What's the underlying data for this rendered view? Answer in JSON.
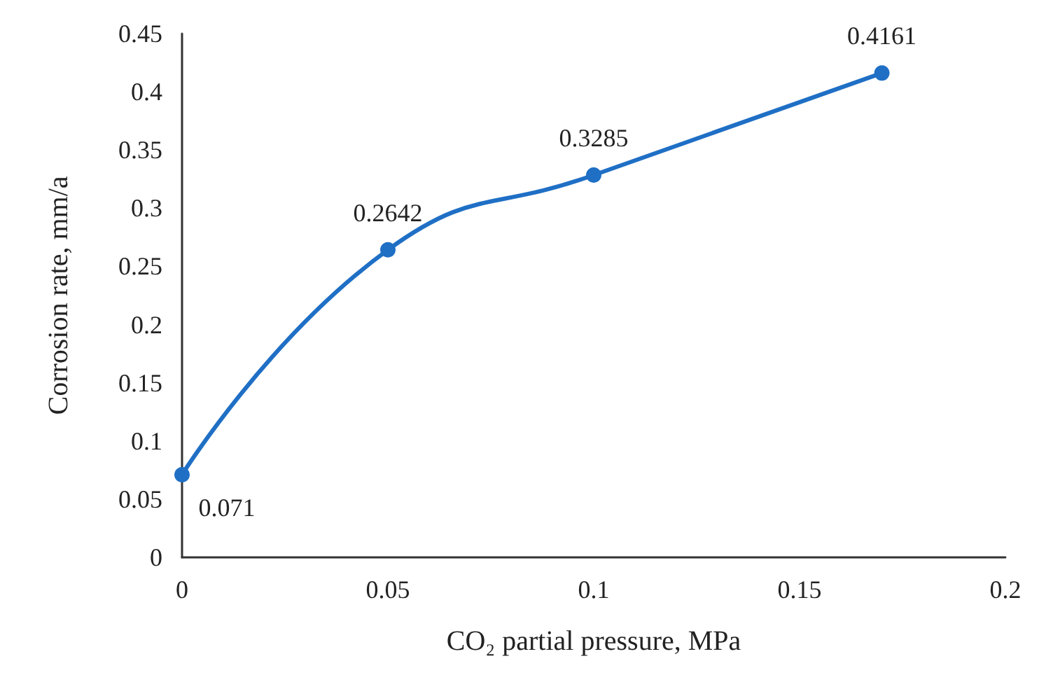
{
  "chart_data": {
    "type": "line",
    "xlabel": "CO₂ partial pressure, MPa",
    "ylabel": "Corrosion rate, mm/a",
    "x": [
      0,
      0.05,
      0.1,
      0.17
    ],
    "series": [
      {
        "color": "#1f6fc5",
        "values": [
          0.071,
          0.2642,
          0.3285,
          0.4161
        ]
      }
    ],
    "xlim": [
      0,
      0.2
    ],
    "xticks": [
      0,
      0.05,
      0.1,
      0.15,
      0.2
    ],
    "ylim": [
      0,
      0.45
    ],
    "yticks": [
      0,
      0.05,
      0.1,
      0.15,
      0.2,
      0.25,
      0.3,
      0.35,
      0.4,
      0.45
    ],
    "grid": false,
    "marker": "circle",
    "line_style": "solid",
    "data_labels": true
  }
}
